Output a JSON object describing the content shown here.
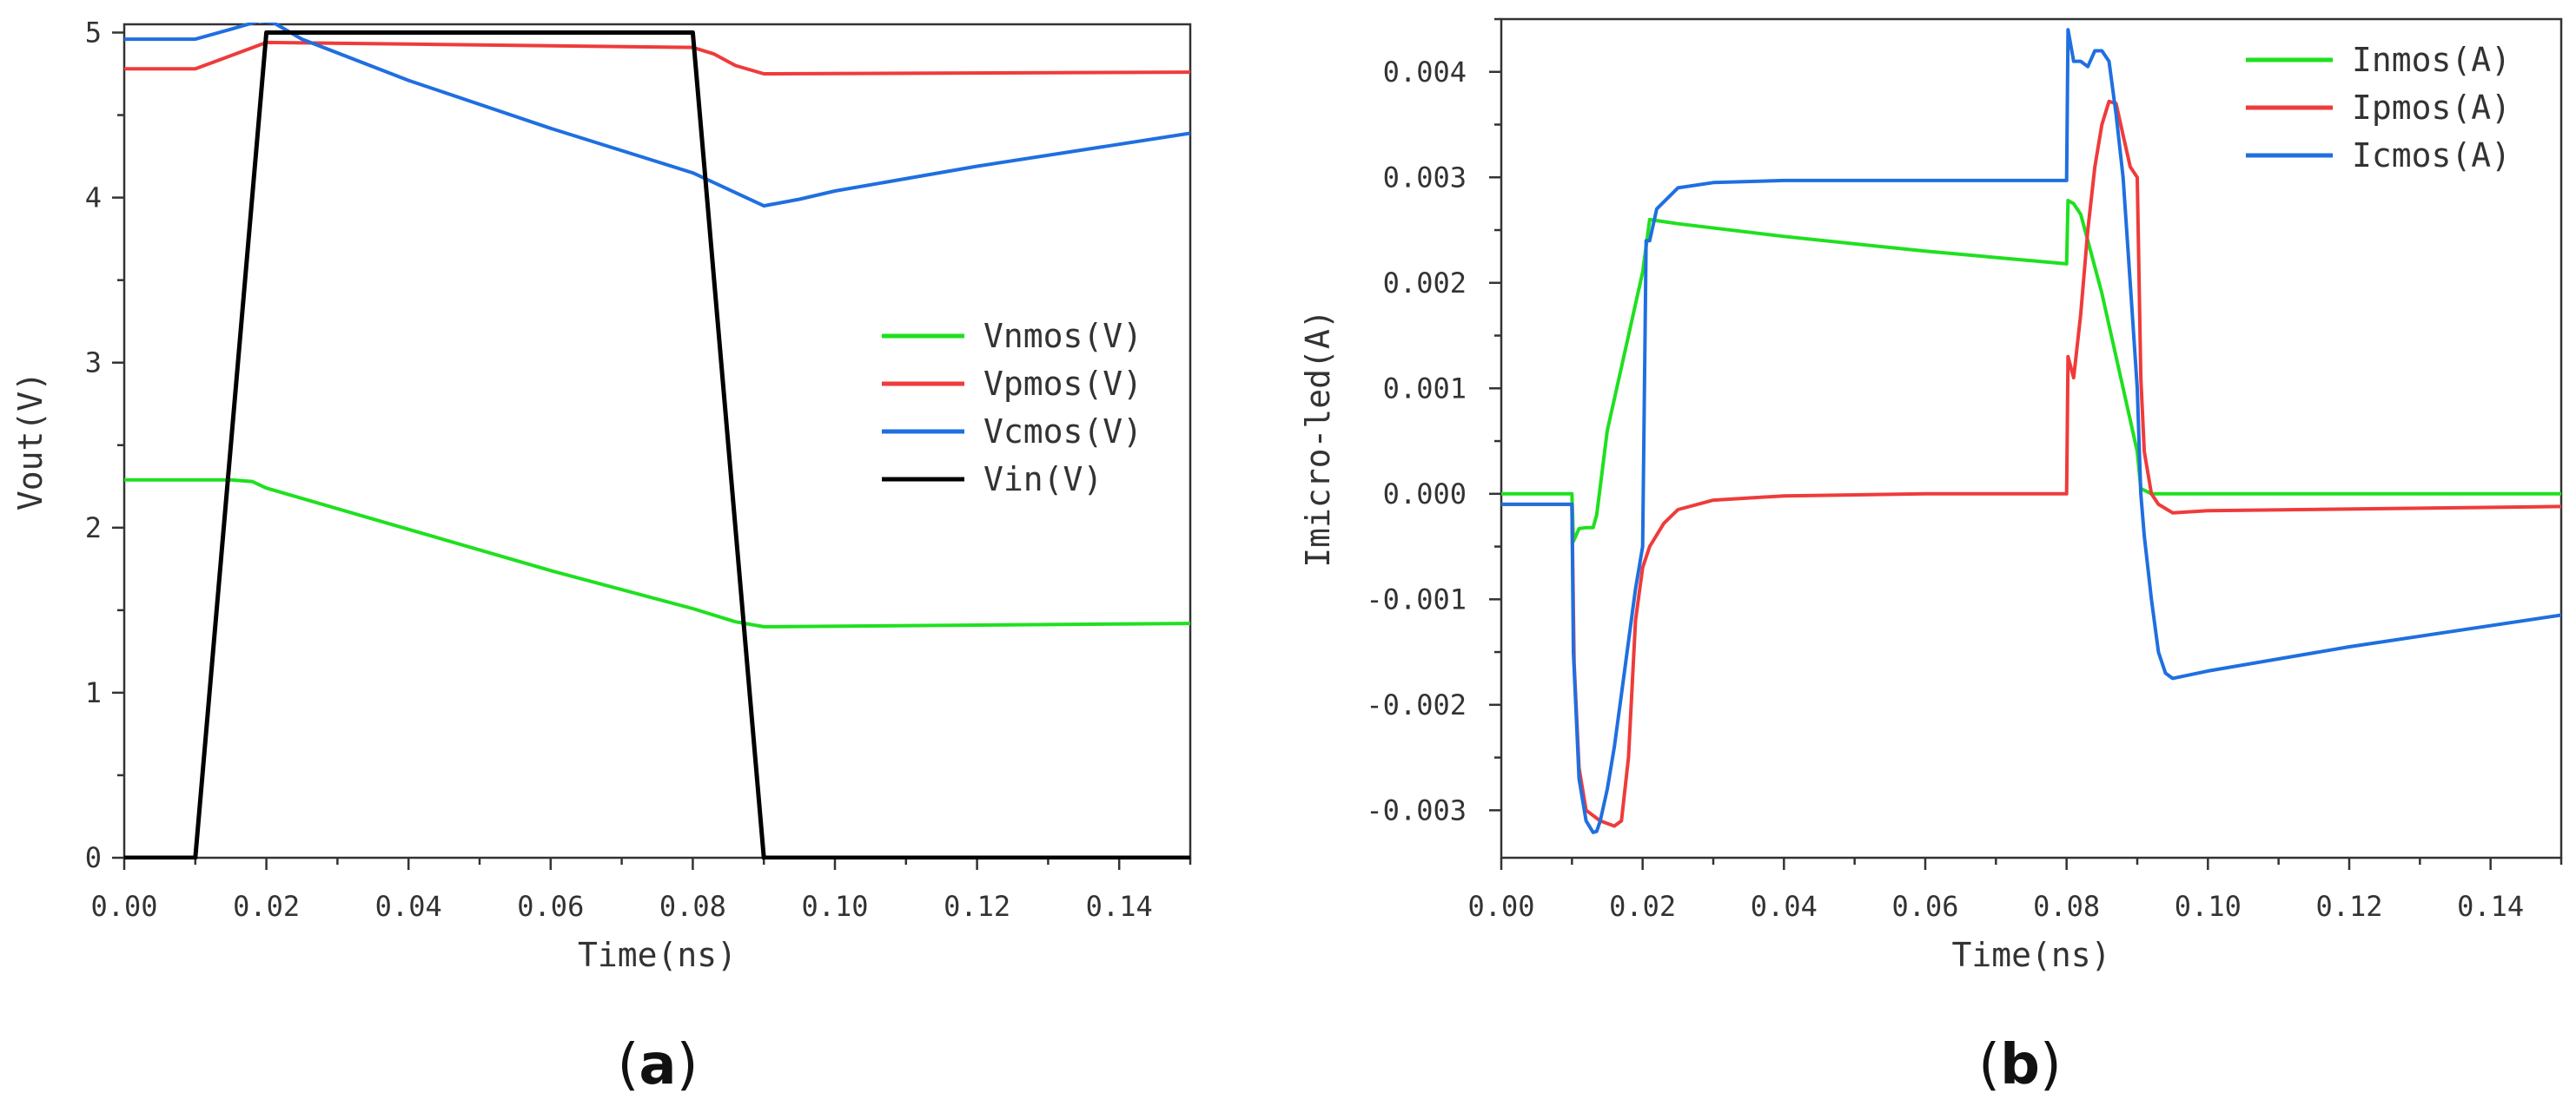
{
  "chart_data": [
    {
      "id": "a",
      "type": "line",
      "panel_label": "a",
      "xlabel": "Time(ns)",
      "ylabel": "Vout(V)",
      "xlim": [
        0,
        0.15
      ],
      "ylim": [
        0,
        5.05
      ],
      "x_ticks": [
        "0.00",
        "0.02",
        "0.04",
        "0.06",
        "0.08",
        "0.10",
        "0.12",
        "0.14"
      ],
      "x_tick_values": [
        0,
        0.02,
        0.04,
        0.06,
        0.08,
        0.1,
        0.12,
        0.14
      ],
      "y_ticks": [
        "0",
        "1",
        "2",
        "3",
        "4",
        "5"
      ],
      "y_tick_values": [
        0,
        1,
        2,
        3,
        4,
        5
      ],
      "legend_position": "center-right",
      "series": [
        {
          "name": "Vnmos(V)",
          "color": "#1fe01f",
          "x": [
            0,
            0.015,
            0.018,
            0.02,
            0.04,
            0.06,
            0.08,
            0.086,
            0.09,
            0.15
          ],
          "y": [
            2.29,
            2.29,
            2.28,
            2.24,
            1.99,
            1.74,
            1.51,
            1.43,
            1.4,
            1.42
          ]
        },
        {
          "name": "Vpmos(V)",
          "color": "#ef3b3b",
          "x": [
            0,
            0.01,
            0.015,
            0.02,
            0.04,
            0.08,
            0.083,
            0.086,
            0.09,
            0.15
          ],
          "y": [
            4.78,
            4.78,
            4.86,
            4.94,
            4.93,
            4.91,
            4.87,
            4.8,
            4.75,
            4.76
          ]
        },
        {
          "name": "Vcmos(V)",
          "color": "#1f6fe0",
          "x": [
            0,
            0.01,
            0.015,
            0.019,
            0.021,
            0.025,
            0.04,
            0.06,
            0.08,
            0.09,
            0.095,
            0.1,
            0.12,
            0.15
          ],
          "y": [
            4.96,
            4.96,
            5.02,
            5.07,
            5.06,
            4.96,
            4.71,
            4.42,
            4.15,
            3.95,
            3.99,
            4.04,
            4.19,
            4.39
          ]
        },
        {
          "name": "Vin(V)",
          "color": "#000000",
          "x": [
            0,
            0.01,
            0.02,
            0.08,
            0.09,
            0.15
          ],
          "y": [
            0,
            0,
            5,
            5,
            0,
            0
          ]
        }
      ]
    },
    {
      "id": "b",
      "type": "line",
      "panel_label": "b",
      "xlabel": "Time(ns)",
      "ylabel": "Imicro-led(A)",
      "xlim": [
        0,
        0.15
      ],
      "ylim": [
        -0.00345,
        0.0045
      ],
      "x_ticks": [
        "0.00",
        "0.02",
        "0.04",
        "0.06",
        "0.08",
        "0.10",
        "0.12",
        "0.14"
      ],
      "x_tick_values": [
        0,
        0.02,
        0.04,
        0.06,
        0.08,
        0.1,
        0.12,
        0.14
      ],
      "y_ticks": [
        "-0.003",
        "-0.002",
        "-0.001",
        "0.000",
        "0.001",
        "0.002",
        "0.003",
        "0.004"
      ],
      "y_tick_values": [
        -0.003,
        -0.002,
        -0.001,
        0,
        0.001,
        0.002,
        0.003,
        0.004
      ],
      "legend_position": "top-right",
      "series": [
        {
          "name": "Inmos(A)",
          "color": "#1fe01f",
          "x": [
            0,
            0.01,
            0.0102,
            0.011,
            0.012,
            0.013,
            0.0135,
            0.015,
            0.017,
            0.019,
            0.02,
            0.021,
            0.025,
            0.04,
            0.06,
            0.08,
            0.0802,
            0.081,
            0.082,
            0.083,
            0.085,
            0.087,
            0.089,
            0.09,
            0.0905,
            0.092,
            0.1,
            0.15
          ],
          "y": [
            0,
            0,
            -0.00045,
            -0.00033,
            -0.00032,
            -0.00032,
            -0.0002,
            0.0006,
            0.0012,
            0.0018,
            0.0021,
            0.0026,
            0.00256,
            0.00244,
            0.0023,
            0.00218,
            0.00278,
            0.00275,
            0.00265,
            0.0024,
            0.0019,
            0.0013,
            0.0007,
            0.0004,
            5e-05,
            0,
            0,
            0
          ]
        },
        {
          "name": "Ipmos(A)",
          "color": "#ef3b3b",
          "x": [
            0,
            0.01,
            0.0103,
            0.011,
            0.012,
            0.014,
            0.016,
            0.017,
            0.018,
            0.019,
            0.02,
            0.021,
            0.023,
            0.025,
            0.03,
            0.04,
            0.06,
            0.08,
            0.0802,
            0.081,
            0.082,
            0.083,
            0.084,
            0.085,
            0.086,
            0.087,
            0.088,
            0.089,
            0.09,
            0.0905,
            0.091,
            0.092,
            0.093,
            0.095,
            0.1,
            0.15
          ],
          "y": [
            -0.0001,
            -0.0001,
            -0.0016,
            -0.0026,
            -0.003,
            -0.0031,
            -0.00315,
            -0.0031,
            -0.0025,
            -0.0012,
            -0.0007,
            -0.0005,
            -0.00028,
            -0.00015,
            -6e-05,
            -2e-05,
            0,
            0,
            0.0013,
            0.0011,
            0.0017,
            0.0025,
            0.0031,
            0.0035,
            0.00372,
            0.0037,
            0.0034,
            0.0031,
            0.003,
            0.0011,
            0.0004,
            0,
            -0.0001,
            -0.00018,
            -0.00016,
            -0.00012
          ]
        },
        {
          "name": "Icmos(A)",
          "color": "#1f6fe0",
          "x": [
            0,
            0.01,
            0.0102,
            0.011,
            0.012,
            0.013,
            0.0135,
            0.014,
            0.015,
            0.016,
            0.017,
            0.018,
            0.019,
            0.02,
            0.0205,
            0.021,
            0.022,
            0.025,
            0.03,
            0.04,
            0.06,
            0.08,
            0.0802,
            0.081,
            0.082,
            0.083,
            0.084,
            0.085,
            0.086,
            0.087,
            0.088,
            0.089,
            0.09,
            0.0905,
            0.091,
            0.092,
            0.093,
            0.094,
            0.095,
            0.1,
            0.12,
            0.15
          ],
          "y": [
            -0.0001,
            -0.0001,
            -0.0015,
            -0.0027,
            -0.0031,
            -0.00321,
            -0.0032,
            -0.0031,
            -0.0028,
            -0.0024,
            -0.0019,
            -0.0014,
            -0.0009,
            -0.0005,
            0.0024,
            0.0024,
            0.0027,
            0.0029,
            0.00295,
            0.00297,
            0.00297,
            0.00297,
            0.0044,
            0.0041,
            0.0041,
            0.00405,
            0.0042,
            0.0042,
            0.0041,
            0.0036,
            0.003,
            0.002,
            0.001,
            0.0,
            -0.0004,
            -0.001,
            -0.0015,
            -0.0017,
            -0.00175,
            -0.00168,
            -0.00145,
            -0.00115
          ]
        }
      ]
    }
  ]
}
